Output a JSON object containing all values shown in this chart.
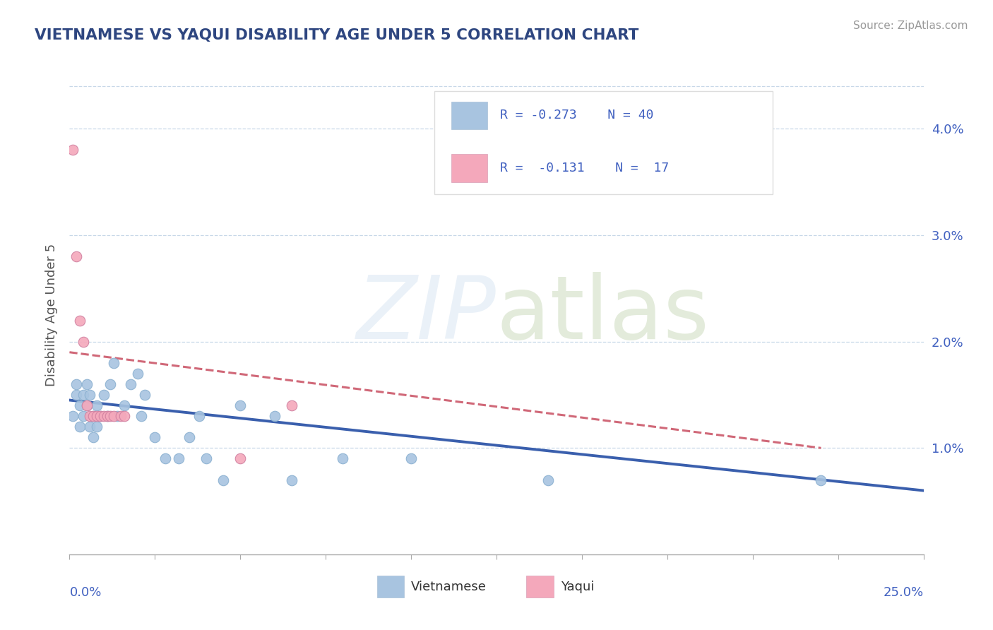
{
  "title": "VIETNAMESE VS YAQUI DISABILITY AGE UNDER 5 CORRELATION CHART",
  "source": "Source: ZipAtlas.com",
  "ylabel": "Disability Age Under 5",
  "xmin": 0.0,
  "xmax": 0.25,
  "ymin": 0.0,
  "ymax": 0.045,
  "yticks": [
    0.01,
    0.02,
    0.03,
    0.04
  ],
  "ytick_labels": [
    "1.0%",
    "2.0%",
    "3.0%",
    "4.0%"
  ],
  "title_color": "#2e4680",
  "blue_color": "#a8c4e0",
  "pink_color": "#f4a8bb",
  "blue_line": "#3a5fad",
  "pink_line": "#d06878",
  "legend_text_color": "#4060c0",
  "r1": "-0.273",
  "n1": "40",
  "r2": "-0.131",
  "n2": "17",
  "viet_x": [
    0.001,
    0.002,
    0.002,
    0.003,
    0.003,
    0.004,
    0.004,
    0.005,
    0.005,
    0.006,
    0.006,
    0.007,
    0.007,
    0.008,
    0.008,
    0.009,
    0.01,
    0.011,
    0.012,
    0.013,
    0.014,
    0.016,
    0.018,
    0.02,
    0.021,
    0.022,
    0.025,
    0.028,
    0.032,
    0.035,
    0.038,
    0.04,
    0.045,
    0.05,
    0.06,
    0.065,
    0.08,
    0.1,
    0.14,
    0.22
  ],
  "viet_y": [
    0.013,
    0.015,
    0.016,
    0.012,
    0.014,
    0.013,
    0.015,
    0.014,
    0.016,
    0.012,
    0.015,
    0.011,
    0.013,
    0.014,
    0.012,
    0.013,
    0.015,
    0.013,
    0.016,
    0.018,
    0.013,
    0.014,
    0.016,
    0.017,
    0.013,
    0.015,
    0.011,
    0.009,
    0.009,
    0.011,
    0.013,
    0.009,
    0.007,
    0.014,
    0.013,
    0.007,
    0.009,
    0.009,
    0.007,
    0.007
  ],
  "yaqui_x": [
    0.001,
    0.002,
    0.003,
    0.004,
    0.005,
    0.006,
    0.007,
    0.008,
    0.009,
    0.01,
    0.011,
    0.012,
    0.013,
    0.015,
    0.016,
    0.05,
    0.065
  ],
  "yaqui_y": [
    0.038,
    0.028,
    0.022,
    0.02,
    0.014,
    0.013,
    0.013,
    0.013,
    0.013,
    0.013,
    0.013,
    0.013,
    0.013,
    0.013,
    0.013,
    0.009,
    0.014
  ],
  "viet_trend_x0": 0.0,
  "viet_trend_x1": 0.25,
  "viet_trend_y0": 0.0145,
  "viet_trend_y1": 0.006,
  "yaqui_trend_x0": 0.0,
  "yaqui_trend_x1": 0.22,
  "yaqui_trend_y0": 0.019,
  "yaqui_trend_y1": 0.01
}
